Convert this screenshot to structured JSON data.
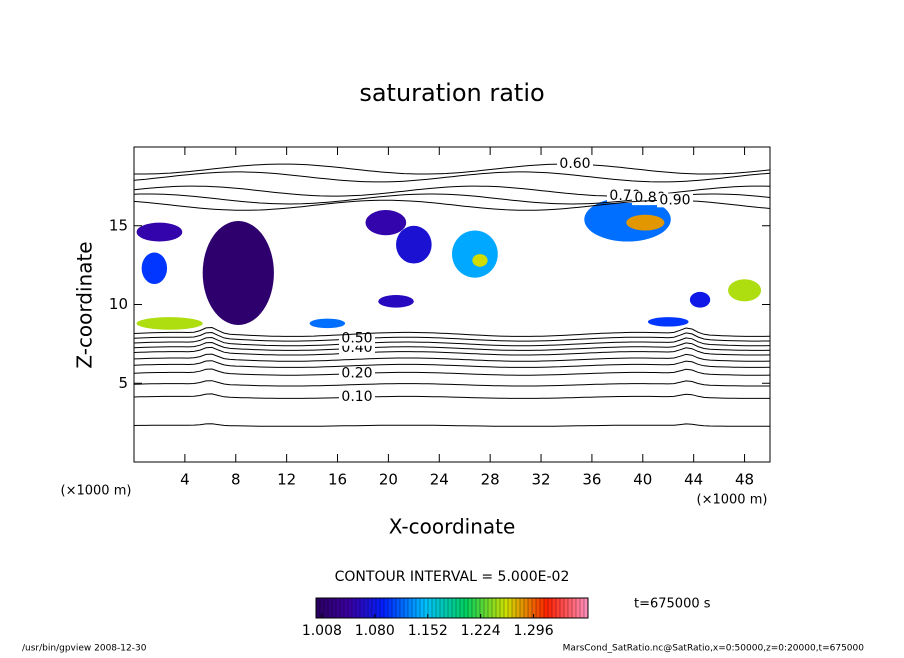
{
  "chart_data": {
    "type": "contour",
    "title": "saturation ratio",
    "x_label": "X-coordinate",
    "y_label": "Z-coordinate",
    "x_unit": "(×1000 m)",
    "y_unit": "(×1000 m)",
    "xlim": [
      0,
      50
    ],
    "xticks": [
      4,
      8,
      12,
      16,
      20,
      24,
      28,
      32,
      36,
      40,
      44,
      48
    ],
    "ylim": [
      0,
      20
    ],
    "yticks": [
      5,
      10,
      15
    ],
    "contours": [
      {
        "value": 0.05,
        "z": 2.3
      },
      {
        "value": 0.1,
        "label": "0.10",
        "z": 4.1
      },
      {
        "value": 0.15,
        "z": 4.9
      },
      {
        "value": 0.2,
        "label": "0.20",
        "z": 5.6
      },
      {
        "value": 0.25,
        "z": 6.1
      },
      {
        "value": 0.3,
        "z": 6.5
      },
      {
        "value": 0.35,
        "z": 6.9
      },
      {
        "value": 0.4,
        "label": "0.40",
        "z": 7.2
      },
      {
        "value": 0.45,
        "z": 7.5
      },
      {
        "value": 0.5,
        "label": "0.50",
        "z": 7.8
      },
      {
        "value": 0.55,
        "z": 8.1
      },
      {
        "value": 0.6,
        "label": "0.60",
        "z": 18.6
      },
      {
        "value": 0.65,
        "z": 18.1
      },
      {
        "value": 0.7,
        "label": "0.70",
        "z": 17.2
      },
      {
        "value": 0.8,
        "label": "0.80",
        "z": 16.7
      },
      {
        "value": 0.9,
        "label": "0.90",
        "z": 16.3
      }
    ],
    "shaded": [
      {
        "x": 8.2,
        "z": 12.0,
        "rx": 2.8,
        "rz": 3.3,
        "value": 1.01
      },
      {
        "x": 2.0,
        "z": 14.6,
        "rx": 1.8,
        "rz": 0.6,
        "value": 1.05
      },
      {
        "x": 1.6,
        "z": 12.3,
        "rx": 1.0,
        "rz": 1.0,
        "value": 1.1
      },
      {
        "x": 2.8,
        "z": 8.8,
        "rx": 2.6,
        "rz": 0.4,
        "value": 1.25
      },
      {
        "x": 19.8,
        "z": 15.2,
        "rx": 1.6,
        "rz": 0.8,
        "value": 1.05
      },
      {
        "x": 22.0,
        "z": 13.8,
        "rx": 1.4,
        "rz": 1.2,
        "value": 1.07
      },
      {
        "x": 26.8,
        "z": 13.2,
        "rx": 1.8,
        "rz": 1.5,
        "value": 1.14
      },
      {
        "x": 27.2,
        "z": 12.8,
        "rx": 0.6,
        "rz": 0.4,
        "value": 1.26
      },
      {
        "x": 38.8,
        "z": 15.4,
        "rx": 3.4,
        "rz": 1.4,
        "value": 1.12
      },
      {
        "x": 40.2,
        "z": 15.2,
        "rx": 1.5,
        "rz": 0.5,
        "value": 1.28
      },
      {
        "x": 15.2,
        "z": 8.8,
        "rx": 1.4,
        "rz": 0.3,
        "value": 1.12
      },
      {
        "x": 20.6,
        "z": 10.2,
        "rx": 1.4,
        "rz": 0.4,
        "value": 1.06
      },
      {
        "x": 48.0,
        "z": 10.9,
        "rx": 1.3,
        "rz": 0.7,
        "value": 1.25
      },
      {
        "x": 44.5,
        "z": 10.3,
        "rx": 0.8,
        "rz": 0.5,
        "value": 1.08
      },
      {
        "x": 42.0,
        "z": 8.9,
        "rx": 1.6,
        "rz": 0.3,
        "value": 1.1
      }
    ],
    "clim": [
      1.0,
      1.37
    ],
    "cticks": [
      {
        "value": 1.008,
        "label": "1.008"
      },
      {
        "value": 1.08,
        "label": "1.080"
      },
      1.152,
      1.224,
      1.296
    ],
    "contour_interval": "CONTOUR INTERVAL = 5.000E-02",
    "time_label": "t=675000 s",
    "footer_left": "/usr/bin/gpview  2008-12-30",
    "footer_right": "MarsCond_SatRatio.nc@SatRatio,x=0:50000,z=0:20000,t=675000"
  }
}
